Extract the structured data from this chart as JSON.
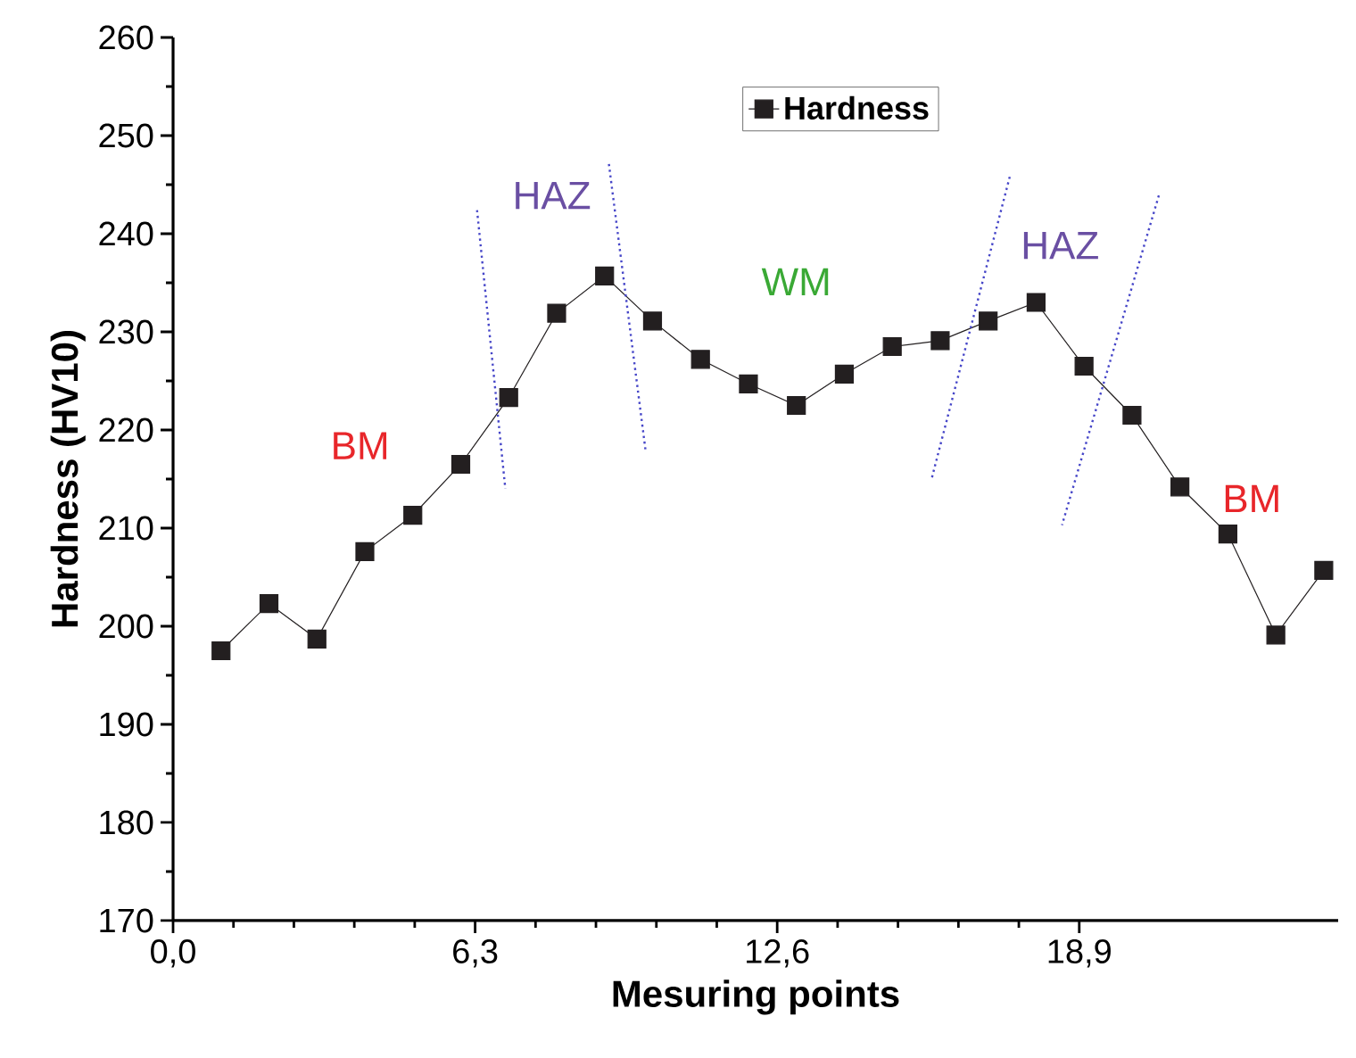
{
  "chart_data": {
    "type": "line",
    "xlabel": "Mesuring points",
    "ylabel": "Hardness (HV10)",
    "x": [
      1,
      2,
      3,
      4,
      5,
      6,
      7,
      8,
      9,
      10,
      11,
      12,
      13,
      14,
      15,
      16,
      17,
      18,
      19,
      20,
      21,
      22,
      23,
      24
    ],
    "series": [
      {
        "name": "Hardness",
        "color": "#231f20",
        "values": [
          197.5,
          202.3,
          198.7,
          207.6,
          211.3,
          216.5,
          223.3,
          231.9,
          235.7,
          231.1,
          227.2,
          224.7,
          222.5,
          225.7,
          228.5,
          229.1,
          231.1,
          233.0,
          226.5,
          221.5,
          214.2,
          209.4,
          199.1,
          205.7
        ]
      }
    ],
    "xlim": [
      0,
      24.3
    ],
    "ylim": [
      170,
      260
    ],
    "xticks": [
      {
        "value": 0,
        "label": "0,0"
      },
      {
        "value": 6.3,
        "label": "6,3"
      },
      {
        "value": 12.6,
        "label": "12,6"
      },
      {
        "value": 18.9,
        "label": "18,9"
      }
    ],
    "yticks": [
      170,
      180,
      190,
      200,
      210,
      220,
      230,
      240,
      250,
      260
    ],
    "annotations": [
      "BM",
      "HAZ",
      "WM",
      "HAZ",
      "BM"
    ],
    "legend": "top",
    "marker": "square",
    "line_style": "solid",
    "grid": false
  }
}
